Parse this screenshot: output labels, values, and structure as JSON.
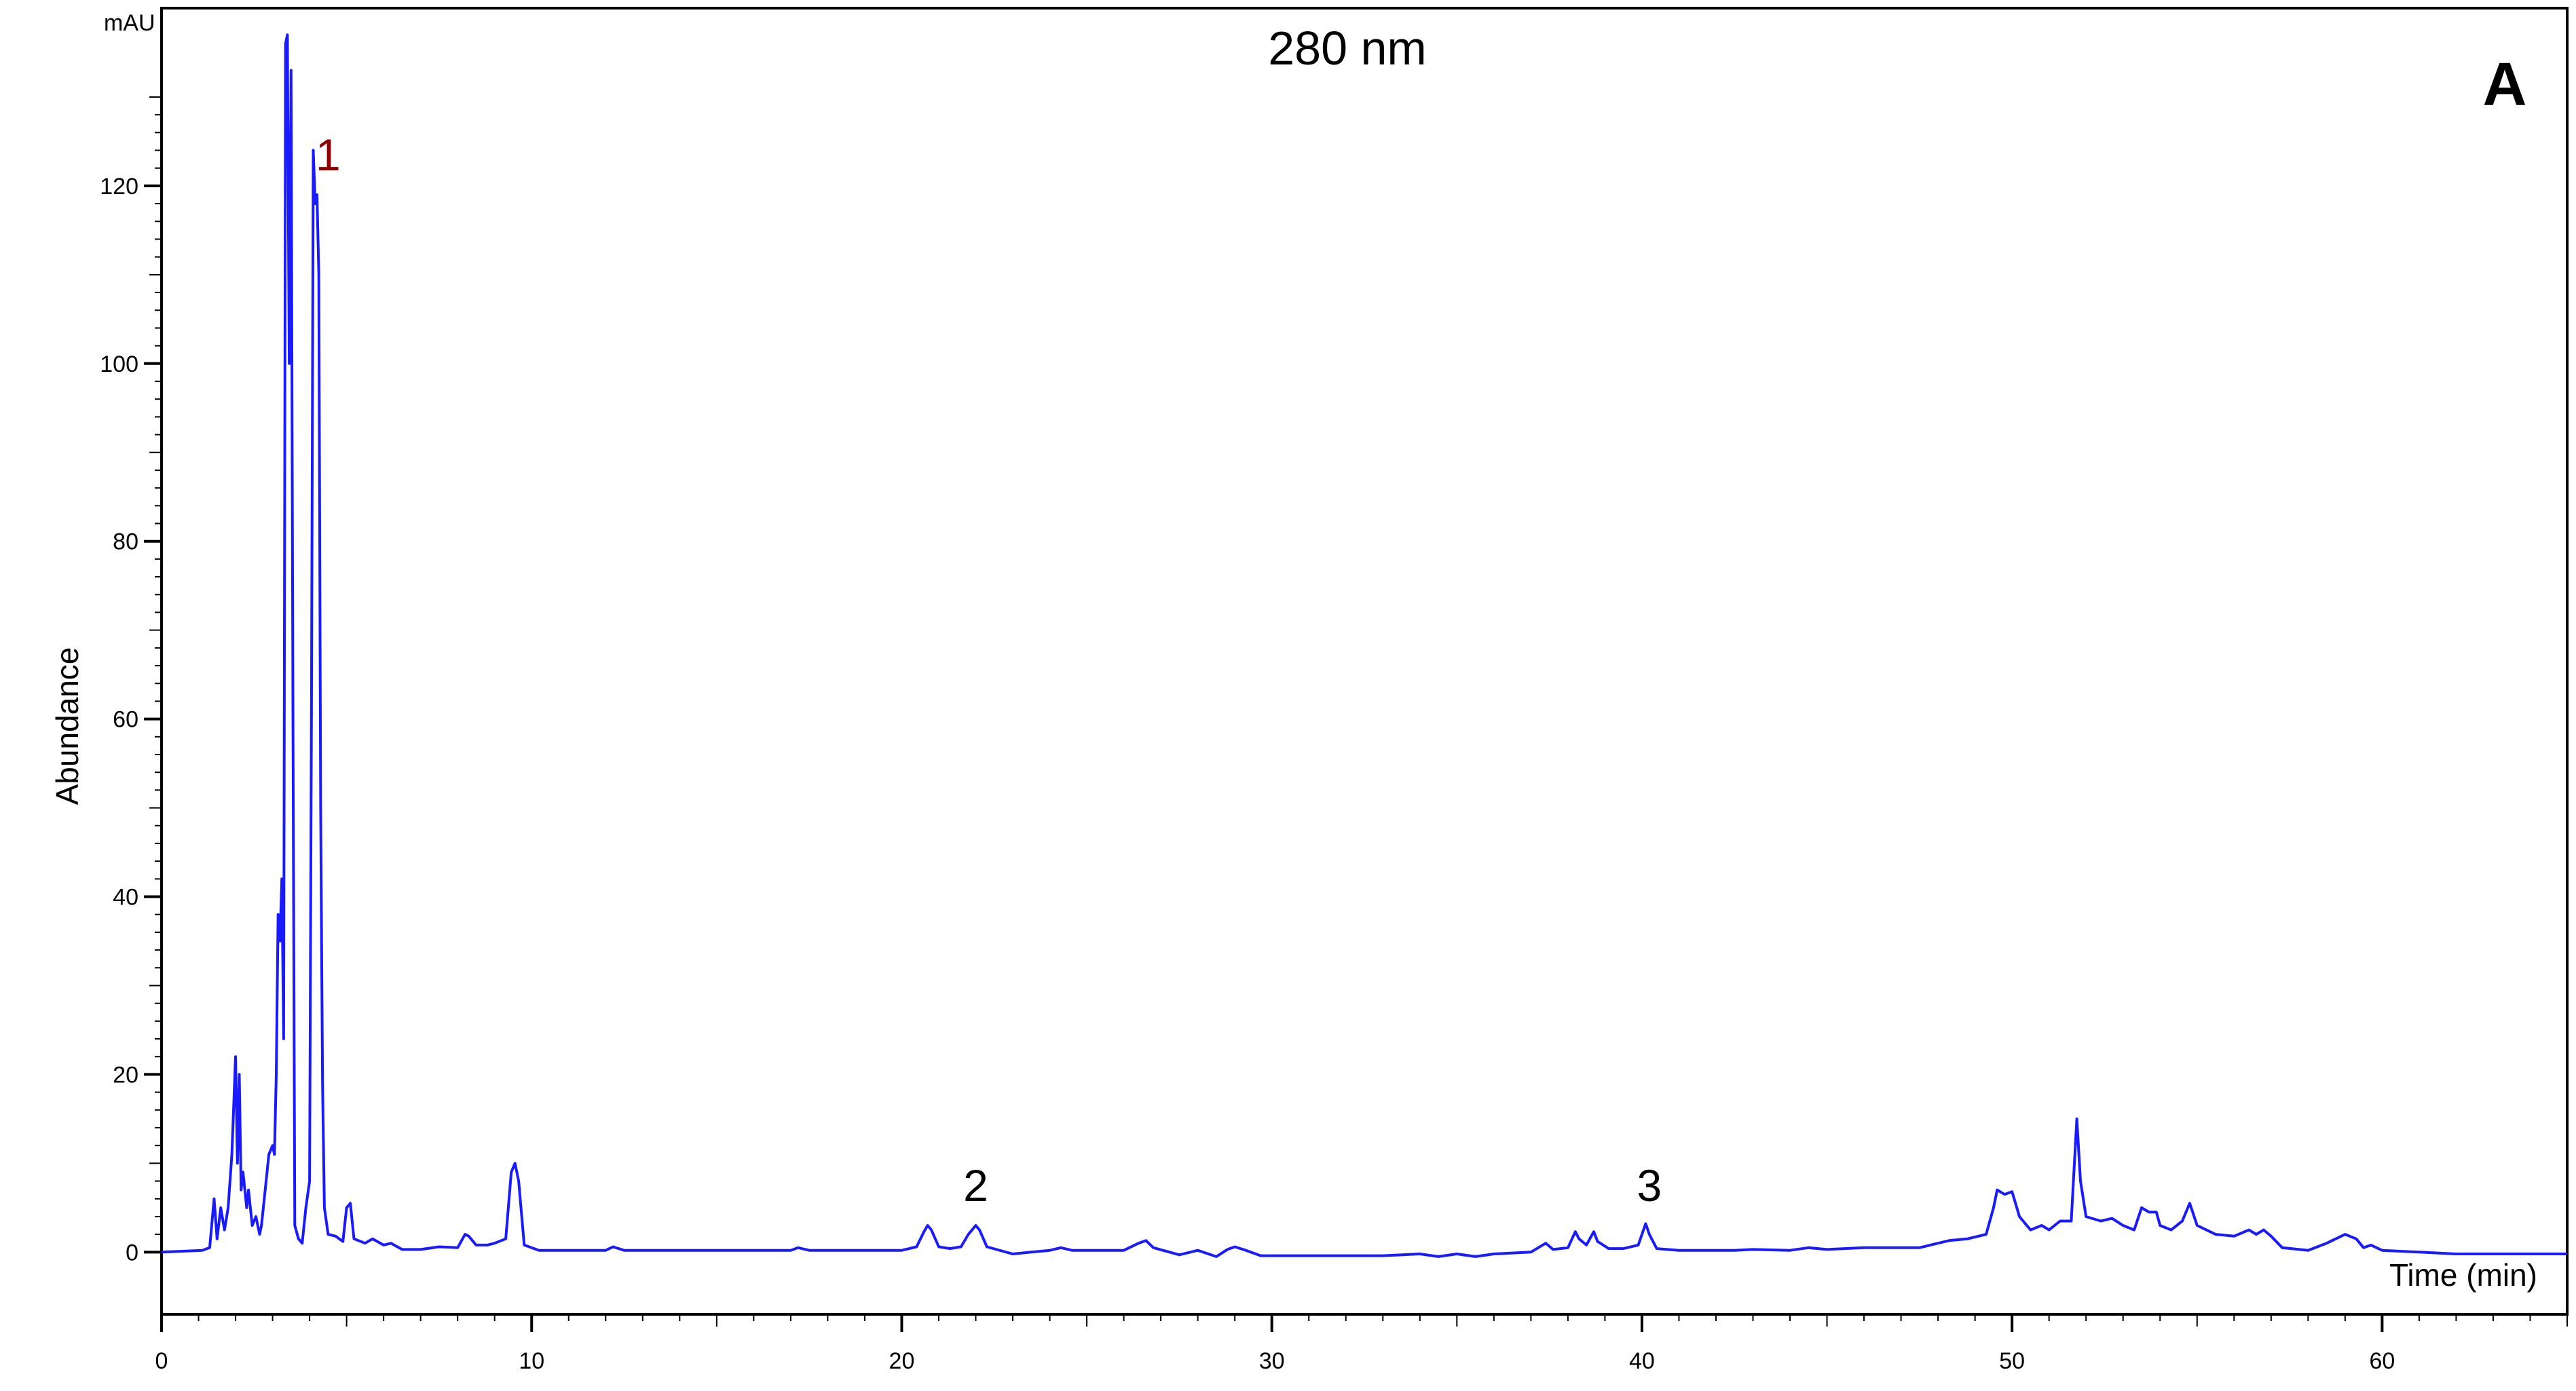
{
  "chart_data": {
    "type": "line",
    "title": "280 nm",
    "panel_label": "A",
    "ylabel": "Abundance",
    "y_unit": "mAU",
    "xlabel": "Time (min)",
    "xlim": [
      0,
      65
    ],
    "ylim": [
      -7,
      140
    ],
    "xticks": [
      0,
      10,
      20,
      30,
      40,
      50,
      60
    ],
    "yticks": [
      0,
      20,
      40,
      60,
      80,
      100,
      120
    ],
    "grid": false,
    "line_color": "#1a1aff",
    "peak_labels": [
      {
        "text": "1",
        "x": 4.5,
        "y": 121,
        "color": "#8b0000"
      },
      {
        "text": "2",
        "x": 22.0,
        "y": 5,
        "color": "#000000"
      },
      {
        "text": "3",
        "x": 40.2,
        "y": 5,
        "color": "#000000"
      }
    ],
    "series": [
      {
        "points": [
          [
            0,
            0
          ],
          [
            1.1,
            0.2
          ],
          [
            1.3,
            0.5
          ],
          [
            1.42,
            6
          ],
          [
            1.5,
            1.5
          ],
          [
            1.6,
            5
          ],
          [
            1.7,
            2.5
          ],
          [
            1.8,
            5
          ],
          [
            1.9,
            11
          ],
          [
            2.0,
            22
          ],
          [
            2.05,
            10
          ],
          [
            2.1,
            20
          ],
          [
            2.15,
            7
          ],
          [
            2.2,
            9
          ],
          [
            2.3,
            5
          ],
          [
            2.35,
            7
          ],
          [
            2.45,
            3
          ],
          [
            2.55,
            4
          ],
          [
            2.65,
            2
          ],
          [
            2.7,
            3
          ],
          [
            2.8,
            7
          ],
          [
            2.9,
            11
          ],
          [
            3.0,
            12
          ],
          [
            3.05,
            11
          ],
          [
            3.1,
            20
          ],
          [
            3.15,
            38
          ],
          [
            3.2,
            35
          ],
          [
            3.25,
            42
          ],
          [
            3.3,
            24
          ],
          [
            3.35,
            136
          ],
          [
            3.4,
            137
          ],
          [
            3.45,
            100
          ],
          [
            3.5,
            133
          ],
          [
            3.55,
            60
          ],
          [
            3.6,
            3
          ],
          [
            3.7,
            1.5
          ],
          [
            3.8,
            1
          ],
          [
            3.9,
            5
          ],
          [
            4.0,
            8
          ],
          [
            4.05,
            60
          ],
          [
            4.1,
            124
          ],
          [
            4.15,
            118
          ],
          [
            4.2,
            119
          ],
          [
            4.25,
            110
          ],
          [
            4.3,
            50
          ],
          [
            4.35,
            19
          ],
          [
            4.4,
            5
          ],
          [
            4.5,
            2
          ],
          [
            4.7,
            1.8
          ],
          [
            4.9,
            1.2
          ],
          [
            5.0,
            5
          ],
          [
            5.1,
            5.5
          ],
          [
            5.2,
            1.5
          ],
          [
            5.5,
            1
          ],
          [
            5.7,
            1.5
          ],
          [
            6.0,
            0.8
          ],
          [
            6.2,
            1
          ],
          [
            6.5,
            0.3
          ],
          [
            7.0,
            0.3
          ],
          [
            7.5,
            0.6
          ],
          [
            8.0,
            0.5
          ],
          [
            8.2,
            2
          ],
          [
            8.3,
            1.8
          ],
          [
            8.5,
            0.8
          ],
          [
            8.8,
            0.8
          ],
          [
            9.0,
            1
          ],
          [
            9.3,
            1.5
          ],
          [
            9.45,
            9
          ],
          [
            9.55,
            10
          ],
          [
            9.65,
            8
          ],
          [
            9.8,
            0.8
          ],
          [
            10.2,
            0.2
          ],
          [
            12,
            0.2
          ],
          [
            12.2,
            0.6
          ],
          [
            12.5,
            0.2
          ],
          [
            14,
            0.2
          ],
          [
            17,
            0.2
          ],
          [
            17.2,
            0.5
          ],
          [
            17.5,
            0.2
          ],
          [
            20,
            0.2
          ],
          [
            20.4,
            0.6
          ],
          [
            20.6,
            2.3
          ],
          [
            20.7,
            3
          ],
          [
            20.8,
            2.5
          ],
          [
            21.0,
            0.6
          ],
          [
            21.3,
            0.4
          ],
          [
            21.6,
            0.6
          ],
          [
            21.8,
            2
          ],
          [
            22.0,
            3
          ],
          [
            22.1,
            2.5
          ],
          [
            22.3,
            0.6
          ],
          [
            23.0,
            -0.2
          ],
          [
            23.5,
            0
          ],
          [
            24.0,
            0.2
          ],
          [
            24.3,
            0.5
          ],
          [
            24.6,
            0.2
          ],
          [
            26.0,
            0.2
          ],
          [
            26.4,
            1
          ],
          [
            26.6,
            1.3
          ],
          [
            26.8,
            0.5
          ],
          [
            27.5,
            -0.3
          ],
          [
            28.0,
            0.2
          ],
          [
            28.5,
            -0.5
          ],
          [
            28.8,
            0.3
          ],
          [
            29.0,
            0.6
          ],
          [
            29.3,
            0.2
          ],
          [
            29.7,
            -0.4
          ],
          [
            30.0,
            -0.4
          ],
          [
            33.0,
            -0.4
          ],
          [
            34.0,
            -0.2
          ],
          [
            34.5,
            -0.5
          ],
          [
            35.0,
            -0.2
          ],
          [
            35.5,
            -0.5
          ],
          [
            36.0,
            -0.2
          ],
          [
            37.0,
            0
          ],
          [
            37.4,
            1
          ],
          [
            37.6,
            0.3
          ],
          [
            38.0,
            0.5
          ],
          [
            38.2,
            2.3
          ],
          [
            38.3,
            1.5
          ],
          [
            38.5,
            0.8
          ],
          [
            38.7,
            2.3
          ],
          [
            38.8,
            1.2
          ],
          [
            39.1,
            0.4
          ],
          [
            39.5,
            0.4
          ],
          [
            39.9,
            0.8
          ],
          [
            40.1,
            3.2
          ],
          [
            40.2,
            2
          ],
          [
            40.4,
            0.4
          ],
          [
            41,
            0.2
          ],
          [
            42.5,
            0.2
          ],
          [
            43,
            0.3
          ],
          [
            44,
            0.2
          ],
          [
            44.5,
            0.5
          ],
          [
            45,
            0.3
          ],
          [
            46,
            0.5
          ],
          [
            47.5,
            0.5
          ],
          [
            48,
            1
          ],
          [
            48.3,
            1.3
          ],
          [
            48.8,
            1.5
          ],
          [
            49.3,
            2
          ],
          [
            49.5,
            5
          ],
          [
            49.6,
            7
          ],
          [
            49.8,
            6.5
          ],
          [
            50.0,
            6.8
          ],
          [
            50.2,
            4
          ],
          [
            50.5,
            2.5
          ],
          [
            50.8,
            3
          ],
          [
            51.0,
            2.5
          ],
          [
            51.3,
            3.5
          ],
          [
            51.6,
            3.5
          ],
          [
            51.75,
            15
          ],
          [
            51.85,
            8
          ],
          [
            52.0,
            4
          ],
          [
            52.4,
            3.5
          ],
          [
            52.7,
            3.8
          ],
          [
            53.0,
            3
          ],
          [
            53.3,
            2.5
          ],
          [
            53.5,
            5
          ],
          [
            53.7,
            4.5
          ],
          [
            53.9,
            4.5
          ],
          [
            54.0,
            3
          ],
          [
            54.3,
            2.5
          ],
          [
            54.6,
            3.5
          ],
          [
            54.8,
            5.5
          ],
          [
            55.0,
            3
          ],
          [
            55.5,
            2
          ],
          [
            56.0,
            1.8
          ],
          [
            56.4,
            2.5
          ],
          [
            56.6,
            2
          ],
          [
            56.8,
            2.5
          ],
          [
            57.0,
            1.8
          ],
          [
            57.3,
            0.5
          ],
          [
            58.0,
            0.2
          ],
          [
            58.5,
            1
          ],
          [
            59.0,
            2
          ],
          [
            59.3,
            1.5
          ],
          [
            59.5,
            0.5
          ],
          [
            59.7,
            0.8
          ],
          [
            60.0,
            0.2
          ],
          [
            61.0,
            0
          ],
          [
            62,
            -0.2
          ],
          [
            63,
            -0.2
          ],
          [
            65,
            -0.2
          ]
        ]
      }
    ]
  }
}
